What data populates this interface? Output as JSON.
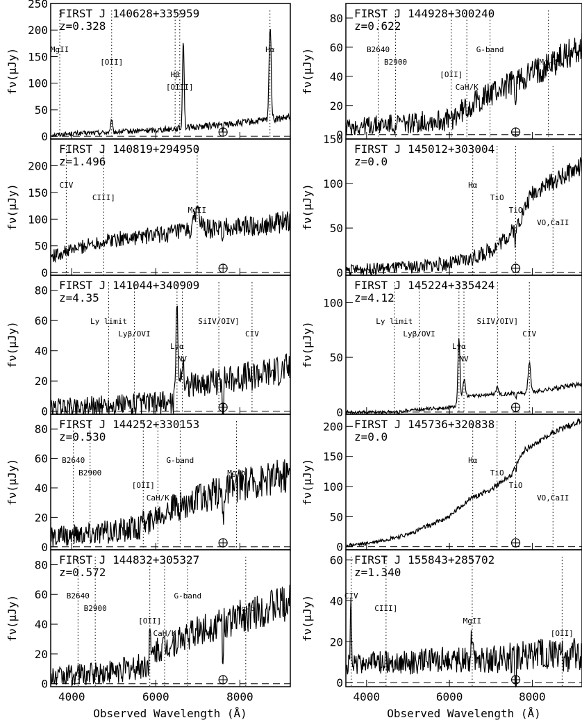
{
  "figure": {
    "xlabel": "Observed Wavelength (Å)",
    "ylabel": "fν(μJy)",
    "x_ticks": [
      4000,
      6000,
      8000
    ]
  },
  "chart_data": [
    {
      "type": "line",
      "column": "left",
      "row": 0,
      "title": "FIRST J 140628+335959",
      "redshift": "z=0.328",
      "xlim": [
        3500,
        9200
      ],
      "ylim": [
        -5,
        250
      ],
      "yticks": [
        0,
        50,
        100,
        150,
        200,
        250
      ],
      "base": 5,
      "noise": 4,
      "x": [
        3500,
        4000,
        5000,
        6000,
        7000,
        8000,
        9200
      ],
      "y": [
        3,
        5,
        8,
        12,
        18,
        25,
        35
      ],
      "peaks": [
        [
          4950,
          25,
          18
        ],
        [
          6660,
          145,
          18
        ],
        [
          6640,
          60,
          12
        ],
        [
          8720,
          180,
          25
        ]
      ],
      "lines": [
        {
          "label": "MgII",
          "x": 3716
        },
        {
          "label": "[OII]",
          "x": 4950
        },
        {
          "label": "Hβ",
          "x": 6460
        },
        {
          "label": "[OIII]",
          "x": 6570
        },
        {
          "label": "Hα",
          "x": 8716
        }
      ],
      "telluric": 7600
    },
    {
      "type": "line",
      "column": "left",
      "row": 1,
      "title": "FIRST J 140819+294950",
      "redshift": "z=1.496",
      "xlim": [
        3500,
        9200
      ],
      "ylim": [
        -5,
        250
      ],
      "yticks": [
        0,
        50,
        100,
        150,
        200
      ],
      "base": 30,
      "noise": 12,
      "x": [
        3500,
        4000,
        4500,
        5000,
        6000,
        7000,
        8000,
        9200
      ],
      "y": [
        30,
        42,
        55,
        62,
        70,
        80,
        85,
        95
      ],
      "peaks": [
        [
          6985,
          40,
          60
        ]
      ],
      "lines": [
        {
          "label": "CIV",
          "x": 3870
        },
        {
          "label": "CIII]",
          "x": 4762
        },
        {
          "label": "MgII",
          "x": 6985
        }
      ],
      "telluric": 7600
    },
    {
      "type": "line",
      "column": "left",
      "row": 2,
      "title": "FIRST J 141044+340909",
      "redshift": "z=4.35",
      "xlim": [
        3500,
        9200
      ],
      "ylim": [
        -2,
        90
      ],
      "yticks": [
        0,
        20,
        40,
        60,
        80
      ],
      "base": 3,
      "noise": 6,
      "x": [
        3500,
        4000,
        5000,
        6000,
        6400,
        6520,
        6600,
        7000,
        8000,
        9200
      ],
      "y": [
        2,
        3,
        4,
        5,
        6,
        10,
        18,
        18,
        22,
        28
      ],
      "peaks": [
        [
          6505,
          60,
          25
        ],
        [
          6630,
          14,
          30
        ]
      ],
      "lines": [
        {
          "label": "Ly limit",
          "x": 4880
        },
        {
          "label": "Lyβ/OVI",
          "x": 5490
        },
        {
          "label": "Lyα",
          "x": 6505
        },
        {
          "label": "NV",
          "x": 6630
        },
        {
          "label": "SiIV/OIV]",
          "x": 7500
        },
        {
          "label": "CIV",
          "x": 8290
        }
      ],
      "telluric": 7600
    },
    {
      "type": "line",
      "column": "left",
      "row": 3,
      "title": "FIRST J 144252+330153",
      "redshift": "z=0.530",
      "xlim": [
        3500,
        9200
      ],
      "ylim": [
        -2,
        90
      ],
      "yticks": [
        0,
        20,
        40,
        60,
        80
      ],
      "base": 5,
      "noise": 7,
      "x": [
        3500,
        4000,
        5000,
        5800,
        6000,
        7000,
        8000,
        9200
      ],
      "y": [
        6,
        8,
        10,
        14,
        22,
        32,
        42,
        50
      ],
      "peaks": [
        [
          5700,
          20,
          12
        ]
      ],
      "lines": [
        {
          "label": "B2640",
          "x": 4040
        },
        {
          "label": "B2900",
          "x": 4437
        },
        {
          "label": "[OII]",
          "x": 5702
        },
        {
          "label": "CaH/K",
          "x": 6050
        },
        {
          "label": "G-band",
          "x": 6580
        },
        {
          "label": "Mg-b",
          "x": 7920
        }
      ],
      "telluric": 7600
    },
    {
      "type": "line",
      "column": "left",
      "row": 4,
      "title": "FIRST J 144832+305327",
      "redshift": "z=0.572",
      "xlim": [
        3500,
        9200
      ],
      "ylim": [
        -2,
        90
      ],
      "yticks": [
        0,
        20,
        40,
        60,
        80
      ],
      "base": 5,
      "noise": 7,
      "x": [
        3500,
        4000,
        5000,
        5800,
        6000,
        7000,
        8000,
        9200
      ],
      "y": [
        4,
        6,
        8,
        12,
        22,
        35,
        45,
        55
      ],
      "peaks": [
        [
          5858,
          25,
          12
        ]
      ],
      "lines": [
        {
          "label": "B2640",
          "x": 4150
        },
        {
          "label": "B2900",
          "x": 4560
        },
        {
          "label": "[OII]",
          "x": 5858
        },
        {
          "label": "CaH/K",
          "x": 6210
        },
        {
          "label": "G-band",
          "x": 6760
        },
        {
          "label": "Mg-b",
          "x": 8140
        }
      ],
      "telluric": 7600
    },
    {
      "type": "line",
      "column": "right",
      "row": 0,
      "title": "FIRST J 144928+300240",
      "redshift": "z=0.622",
      "xlim": [
        3500,
        9200
      ],
      "ylim": [
        -3,
        90
      ],
      "yticks": [
        0,
        20,
        40,
        60,
        80
      ],
      "base": 5,
      "noise": 6,
      "x": [
        3500,
        4000,
        5000,
        6000,
        6400,
        7000,
        8000,
        9200
      ],
      "y": [
        5,
        6,
        8,
        10,
        18,
        28,
        42,
        60
      ],
      "peaks": [],
      "lines": [
        {
          "label": "B2640",
          "x": 4280
        },
        {
          "label": "B2900",
          "x": 4700
        },
        {
          "label": "[OII]",
          "x": 6045
        },
        {
          "label": "CaH/K",
          "x": 6420
        },
        {
          "label": "G-band",
          "x": 6980
        },
        {
          "label": "Mg-b",
          "x": 8390
        }
      ],
      "telluric": 7600
    },
    {
      "type": "line",
      "column": "right",
      "row": 1,
      "title": "FIRST J 145012+303004",
      "redshift": "z=0.0",
      "xlim": [
        3500,
        9200
      ],
      "ylim": [
        -3,
        150
      ],
      "yticks": [
        0,
        50,
        100,
        150
      ],
      "base": 5,
      "noise": 6,
      "x": [
        3500,
        5000,
        6000,
        6500,
        7000,
        7500,
        7700,
        8000,
        9200
      ],
      "y": [
        3,
        6,
        10,
        15,
        25,
        45,
        60,
        90,
        120
      ],
      "peaks": [],
      "lines": [
        {
          "label": "Hα",
          "x": 6563
        },
        {
          "label": "TiO",
          "x": 7150
        },
        {
          "label": "TiO",
          "x": 7600
        },
        {
          "label": "VO,CaII",
          "x": 8500
        }
      ],
      "telluric": 7600
    },
    {
      "type": "line",
      "column": "right",
      "row": 2,
      "title": "FIRST J 145224+335424",
      "redshift": "z=4.12",
      "xlim": [
        3500,
        9200
      ],
      "ylim": [
        -2,
        125
      ],
      "yticks": [
        0,
        50,
        100
      ],
      "base": 2,
      "noise": 1.2,
      "x": [
        3500,
        4800,
        5000,
        6000,
        6200,
        6400,
        7000,
        8000,
        9200
      ],
      "y": [
        0,
        0,
        2,
        4,
        6,
        14,
        16,
        18,
        26
      ],
      "peaks": [
        [
          6230,
          60,
          25
        ],
        [
          6350,
          18,
          30
        ],
        [
          7150,
          6,
          30
        ],
        [
          7930,
          28,
          30
        ]
      ],
      "lines": [
        {
          "label": "Ly limit",
          "x": 4670
        },
        {
          "label": "Lyβ/OVI",
          "x": 5270
        },
        {
          "label": "Lyα",
          "x": 6230
        },
        {
          "label": "NV",
          "x": 6350
        },
        {
          "label": "SiIV/OIV]",
          "x": 7160
        },
        {
          "label": "CIV",
          "x": 7930
        }
      ],
      "telluric": 7600
    },
    {
      "type": "line",
      "column": "right",
      "row": 3,
      "title": "FIRST J 145736+320838",
      "redshift": "z=0.0",
      "xlim": [
        3500,
        9200
      ],
      "ylim": [
        -5,
        220
      ],
      "yticks": [
        0,
        50,
        100,
        150,
        200
      ],
      "base": 5,
      "noise": 3,
      "x": [
        3500,
        4000,
        5000,
        6000,
        6500,
        7000,
        7500,
        7800,
        8500,
        9200
      ],
      "y": [
        2,
        5,
        20,
        50,
        80,
        95,
        120,
        160,
        190,
        210
      ],
      "peaks": [],
      "lines": [
        {
          "label": "Hα",
          "x": 6563
        },
        {
          "label": "TiO",
          "x": 7150
        },
        {
          "label": "TiO",
          "x": 7600
        },
        {
          "label": "VO,CaII",
          "x": 8500
        }
      ],
      "telluric": 7600
    },
    {
      "type": "line",
      "column": "right",
      "row": 4,
      "title": "FIRST J 155843+285702",
      "redshift": "z=1.340",
      "xlim": [
        3500,
        9200
      ],
      "ylim": [
        -2,
        65
      ],
      "yticks": [
        0,
        20,
        40,
        60
      ],
      "base": 5,
      "noise": 5,
      "x": [
        3500,
        4000,
        5000,
        6000,
        7000,
        8000,
        9200
      ],
      "y": [
        8,
        10,
        10,
        11,
        12,
        13,
        14
      ],
      "peaks": [
        [
          3620,
          30,
          14
        ],
        [
          6550,
          15,
          25
        ]
      ],
      "lines": [
        {
          "label": "CIV",
          "x": 3630
        },
        {
          "label": "CIII]",
          "x": 4470
        },
        {
          "label": "MgII",
          "x": 6550
        },
        {
          "label": "[OII]",
          "x": 8720
        }
      ],
      "telluric": 7600
    }
  ]
}
